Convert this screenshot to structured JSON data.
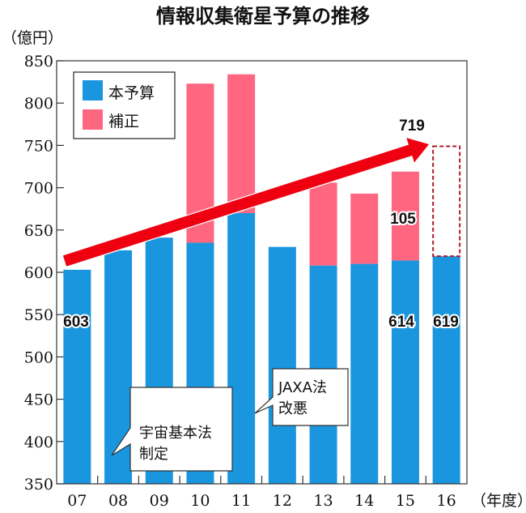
{
  "chart_data": {
    "type": "bar",
    "stacked": true,
    "title": "情報収集衛星予算の推移",
    "ylabel": "（億円）",
    "xlabel": "（年度）",
    "ylim": [
      350,
      850
    ],
    "yticks": [
      350,
      400,
      450,
      500,
      550,
      600,
      650,
      700,
      750,
      800,
      850
    ],
    "categories": [
      "07",
      "08",
      "09",
      "10",
      "11",
      "12",
      "13",
      "14",
      "15",
      "16"
    ],
    "series": [
      {
        "name": "本予算",
        "color": "#1a96de",
        "values": [
          603,
          626,
          641,
          635,
          670,
          630,
          608,
          610,
          614,
          619
        ]
      },
      {
        "name": "補正",
        "color": "#ff6680",
        "values": [
          0,
          0,
          0,
          188,
          164,
          0,
          98,
          83,
          105,
          0
        ]
      }
    ],
    "projected": {
      "category": "16",
      "total": 749,
      "style": "dashed",
      "color": "#b01c2e"
    },
    "legend": {
      "position": "top-left",
      "entries": [
        "本予算",
        "補正"
      ]
    },
    "data_labels": [
      {
        "category": "07",
        "text": "603"
      },
      {
        "category": "15",
        "text": "614"
      },
      {
        "category": "16",
        "text": "619"
      },
      {
        "category": "15",
        "text": "105"
      },
      {
        "category": "15",
        "text": "719"
      }
    ],
    "trend_arrow": {
      "from": "07",
      "to": "16",
      "color": "#ee0011"
    },
    "annotations": [
      {
        "lines": [
          "宇宙基本法",
          "制定"
        ],
        "category": "08"
      },
      {
        "lines": [
          "JAXA法",
          "改悪"
        ],
        "category": "12"
      }
    ]
  }
}
